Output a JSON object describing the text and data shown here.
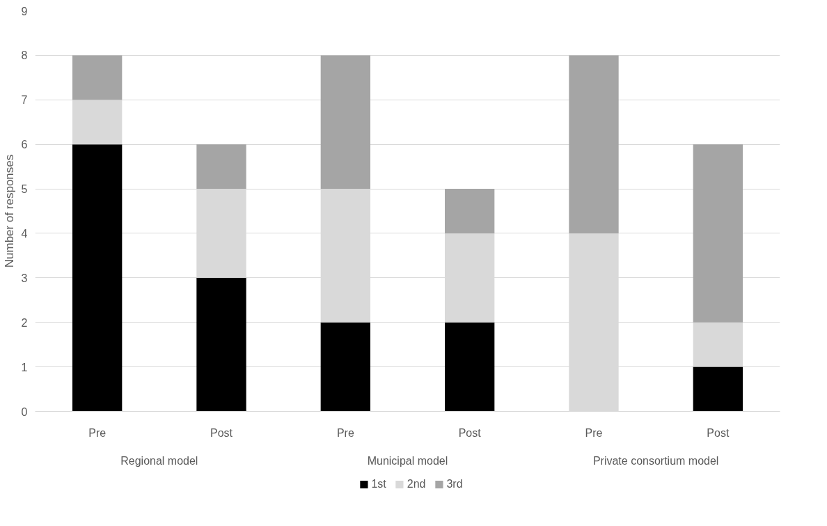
{
  "chart_data": {
    "type": "bar",
    "stacked": true,
    "ylabel": "Number of responses",
    "categories": [
      "Pre",
      "Post",
      "Pre",
      "Post",
      "Pre",
      "Post"
    ],
    "annotations": [
      "Regional model",
      "Municipal model",
      "Private consortium model"
    ],
    "series": [
      {
        "name": "1st",
        "color": "#000000",
        "values": [
          6,
          3,
          2,
          2,
          0,
          1
        ]
      },
      {
        "name": "2nd",
        "color": "#d9d9d9",
        "values": [
          1,
          2,
          3,
          2,
          4,
          1
        ]
      },
      {
        "name": "3rd",
        "color": "#a5a5a5",
        "values": [
          1,
          1,
          3,
          1,
          4,
          4
        ]
      }
    ],
    "ylim": [
      0,
      9
    ],
    "yticks": [
      0,
      1,
      2,
      3,
      4,
      5,
      6,
      7,
      8,
      9
    ],
    "grid": "y",
    "legend": "bottom"
  }
}
